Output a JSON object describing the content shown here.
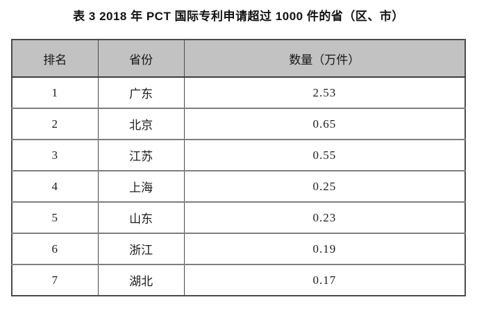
{
  "title": "表 3 2018 年 PCT 国际专利申请超过 1000 件的省（区、市）",
  "table": {
    "headers": {
      "rank": "排名",
      "province": "省份",
      "quantity": "数量（万件）"
    },
    "rows": [
      {
        "rank": "1",
        "province": "广东",
        "quantity": "2.53"
      },
      {
        "rank": "2",
        "province": "北京",
        "quantity": "0.65"
      },
      {
        "rank": "3",
        "province": "江苏",
        "quantity": "0.55"
      },
      {
        "rank": "4",
        "province": "上海",
        "quantity": "0.25"
      },
      {
        "rank": "5",
        "province": "山东",
        "quantity": "0.23"
      },
      {
        "rank": "6",
        "province": "浙江",
        "quantity": "0.19"
      },
      {
        "rank": "7",
        "province": "湖北",
        "quantity": "0.17"
      }
    ],
    "header_bg_color": "#c2c2c2",
    "border_color": "#4a4a4a",
    "row_divider_color": "#7d7d7d"
  }
}
